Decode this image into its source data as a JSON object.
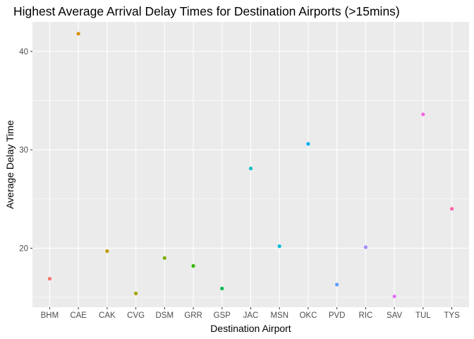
{
  "chart_data": {
    "type": "scatter",
    "title": "Highest Average Arrival Delay Times for Destination Airports (>15mins)",
    "xlabel": "Destination Airport",
    "ylabel": "Average Delay Time",
    "categories": [
      "BHM",
      "CAE",
      "CAK",
      "CVG",
      "DSM",
      "GRR",
      "GSP",
      "JAC",
      "MSN",
      "OKC",
      "PVD",
      "RIC",
      "SAV",
      "TUL",
      "TYS"
    ],
    "values": [
      16.9,
      41.8,
      19.7,
      15.4,
      19.0,
      18.2,
      15.9,
      28.1,
      20.2,
      30.6,
      16.3,
      20.1,
      15.1,
      33.6,
      24.0
    ],
    "colors": [
      "#F8766D",
      "#DB8E00",
      "#AEA200",
      "#64B200",
      "#00BD5C",
      "#00C1A7",
      "#00BADE",
      "#00A6FF",
      "#B385FF",
      "#EF67EB",
      "#FF63B6"
    ],
    "point_colors": [
      "#F8766D",
      "#DB8E00",
      "#C09B00",
      "#A3A500",
      "#7CAE00",
      "#39B600",
      "#00BB4E",
      "#00BFC4",
      "#00BCD8",
      "#00B0F6",
      "#619CFF",
      "#A58AFF",
      "#DF70F8",
      "#F763E0",
      "#FF65AC"
    ],
    "yticks": [
      20,
      30,
      40
    ],
    "ylim": [
      14.0,
      43.0
    ],
    "grid": true,
    "legend": "none"
  }
}
